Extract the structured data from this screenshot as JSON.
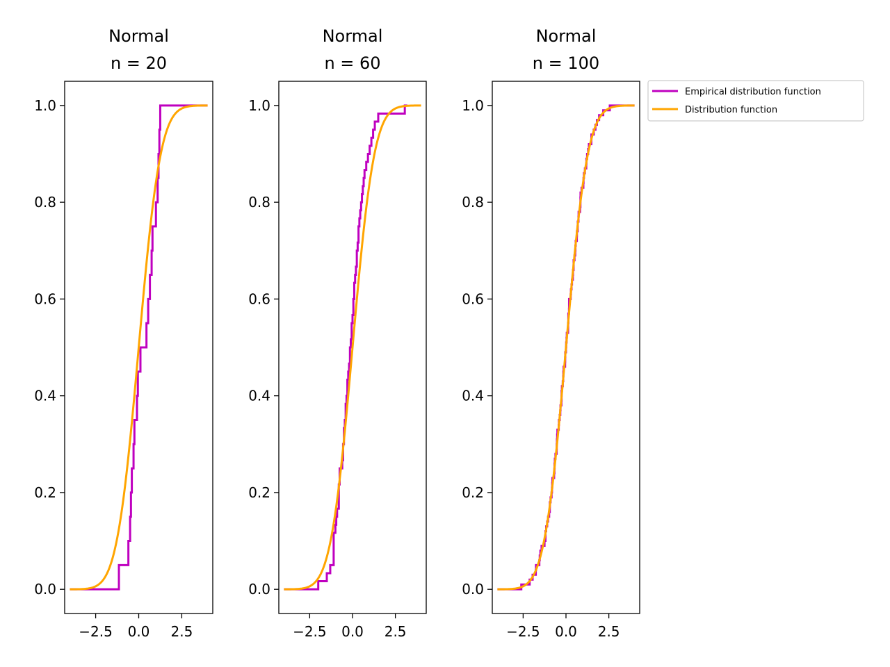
{
  "chart_data": [
    {
      "type": "line",
      "title_line1": "Normal",
      "title_line2": "n = 20",
      "xlim": [
        -4.3,
        4.3
      ],
      "ylim": [
        -0.05,
        1.05
      ],
      "xticks": [
        -2.5,
        0.0,
        2.5
      ],
      "xtick_labels": [
        "−2.5",
        "0.0",
        "2.5"
      ],
      "yticks": [
        0.0,
        0.2,
        0.4,
        0.6,
        0.8,
        1.0
      ],
      "ytick_labels": [
        "0.0",
        "0.2",
        "0.4",
        "0.6",
        "0.8",
        "1.0"
      ],
      "grid": false,
      "series": [
        {
          "name": "Empirical distribution function",
          "color": "#bf00bf",
          "kind": "step",
          "x_range": [
            -4.0,
            4.0
          ],
          "x": [
            -1.15,
            -0.6,
            -0.5,
            -0.45,
            -0.4,
            -0.3,
            -0.25,
            -0.1,
            -0.05,
            0.1,
            0.45,
            0.55,
            0.65,
            0.75,
            0.8,
            1.0,
            1.1,
            1.15,
            1.2,
            1.25
          ],
          "y": [
            0.05,
            0.1,
            0.15,
            0.2,
            0.25,
            0.3,
            0.35,
            0.4,
            0.45,
            0.5,
            0.55,
            0.6,
            0.65,
            0.7,
            0.75,
            0.8,
            0.85,
            0.9,
            0.95,
            1.0
          ]
        },
        {
          "name": "Distribution function",
          "color": "#ffa500",
          "kind": "normal_cdf",
          "x_range": [
            -4.0,
            4.0
          ]
        }
      ]
    },
    {
      "type": "line",
      "title_line1": "Normal",
      "title_line2": "n = 60",
      "xlim": [
        -4.3,
        4.3
      ],
      "ylim": [
        -0.05,
        1.05
      ],
      "xticks": [
        -2.5,
        0.0,
        2.5
      ],
      "xtick_labels": [
        "−2.5",
        "0.0",
        "2.5"
      ],
      "yticks": [
        0.0,
        0.2,
        0.4,
        0.6,
        0.8,
        1.0
      ],
      "ytick_labels": [
        "0.0",
        "0.2",
        "0.4",
        "0.6",
        "0.8",
        "1.0"
      ],
      "grid": false,
      "series": [
        {
          "name": "Empirical distribution function",
          "color": "#bf00bf",
          "kind": "step",
          "x_range": [
            -4.0,
            3.2
          ],
          "x": [
            -2.0,
            -1.5,
            -1.3,
            -1.1,
            -1.0,
            -0.95,
            -0.9,
            -0.8,
            -0.75,
            -0.6,
            -0.55,
            -0.5,
            -0.45,
            -0.4,
            -0.35,
            -0.3,
            -0.25,
            -0.2,
            -0.15,
            -0.1,
            -0.05,
            0.0,
            0.05,
            0.1,
            0.15,
            0.2,
            0.25,
            0.3,
            0.35,
            0.4,
            0.45,
            0.5,
            0.55,
            0.6,
            0.65,
            0.7,
            0.8,
            0.9,
            1.0,
            1.1,
            1.2,
            1.3,
            1.5,
            3.05
          ],
          "y": [
            0.0167,
            0.0333,
            0.05,
            0.1167,
            0.1333,
            0.15,
            0.1667,
            0.2167,
            0.25,
            0.2667,
            0.3,
            0.3333,
            0.35,
            0.3833,
            0.4,
            0.4333,
            0.45,
            0.4667,
            0.5,
            0.5167,
            0.55,
            0.5667,
            0.6,
            0.6333,
            0.65,
            0.6667,
            0.7,
            0.7167,
            0.75,
            0.7667,
            0.7833,
            0.8,
            0.8167,
            0.8333,
            0.85,
            0.8667,
            0.8833,
            0.9,
            0.9167,
            0.9333,
            0.95,
            0.9667,
            0.9833,
            1.0
          ]
        },
        {
          "name": "Distribution function",
          "color": "#ffa500",
          "kind": "normal_cdf",
          "x_range": [
            -4.0,
            4.0
          ]
        }
      ]
    },
    {
      "type": "line",
      "title_line1": "Normal",
      "title_line2": "n = 100",
      "xlim": [
        -4.3,
        4.3
      ],
      "ylim": [
        -0.05,
        1.05
      ],
      "xticks": [
        -2.5,
        0.0,
        2.5
      ],
      "xtick_labels": [
        "−2.5",
        "0.0",
        "2.5"
      ],
      "yticks": [
        0.0,
        0.2,
        0.4,
        0.6,
        0.8,
        1.0
      ],
      "ytick_labels": [
        "0.0",
        "0.2",
        "0.4",
        "0.6",
        "0.8",
        "1.0"
      ],
      "grid": false,
      "legend": {
        "placement": "outside upper right",
        "entries": [
          "Empirical distribution function",
          "Distribution function"
        ]
      },
      "series": [
        {
          "name": "Empirical distribution function",
          "color": "#bf00bf",
          "kind": "sampled_step",
          "n": 100,
          "x_range": [
            -4.0,
            4.0
          ],
          "seed": 7
        },
        {
          "name": "Distribution function",
          "color": "#ffa500",
          "kind": "normal_cdf",
          "x_range": [
            -4.0,
            4.0
          ]
        }
      ]
    }
  ]
}
